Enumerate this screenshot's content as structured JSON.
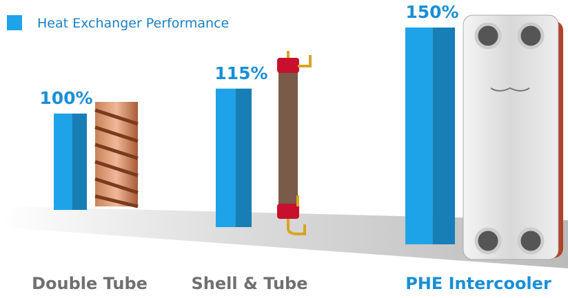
{
  "chart_data": {
    "type": "bar3d",
    "series": [
      {
        "name": "Heat Exchanger Performance",
        "color": "#1ea3e8",
        "values": [
          100,
          115,
          150
        ],
        "value_labels": [
          "100%",
          "115%",
          "150%"
        ]
      }
    ],
    "categories": [
      "Double Tube",
      "Shell & Tube",
      "PHE Intercooler"
    ]
  }
}
